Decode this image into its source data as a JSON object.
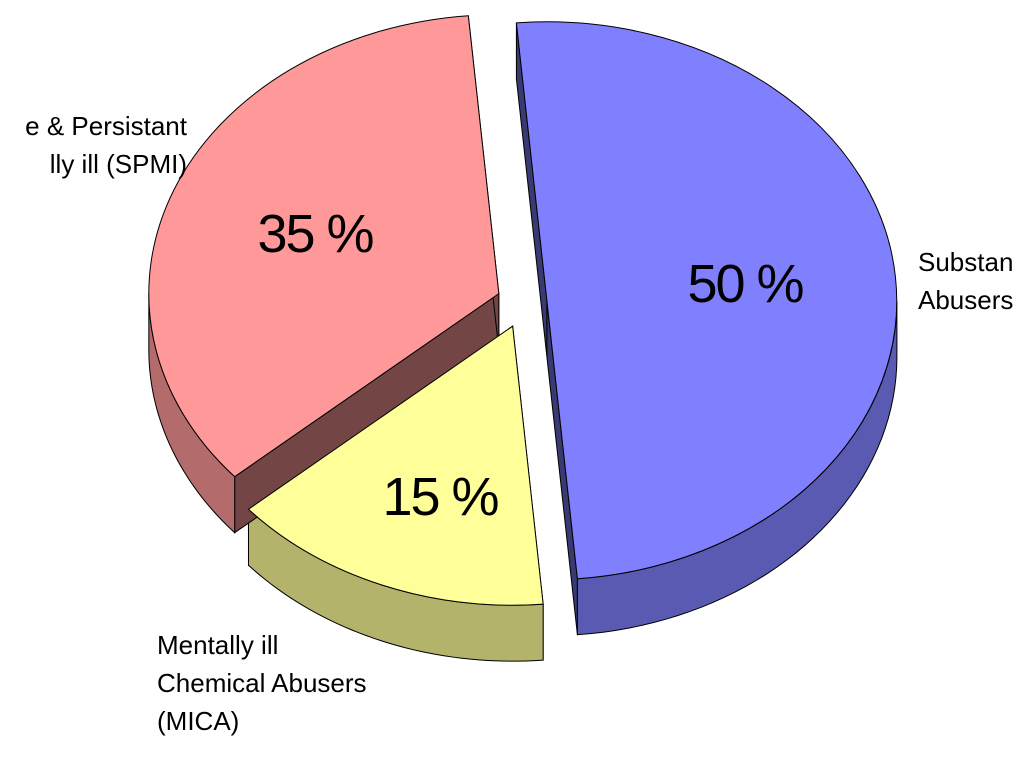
{
  "chart_data": {
    "type": "pie",
    "categories": [
      [
        "Substan",
        "Abusers"
      ],
      [
        "Mentally ill",
        "Chemical Abusers",
        "(MICA)"
      ],
      [
        "e & Persistant",
        "lly ill (SPMI)"
      ]
    ],
    "values": [
      50,
      15,
      35
    ],
    "value_labels": [
      "50 %",
      "15 %",
      "35 %"
    ],
    "colors": [
      "#8080ff",
      "#ffff99",
      "#ff9999"
    ]
  }
}
